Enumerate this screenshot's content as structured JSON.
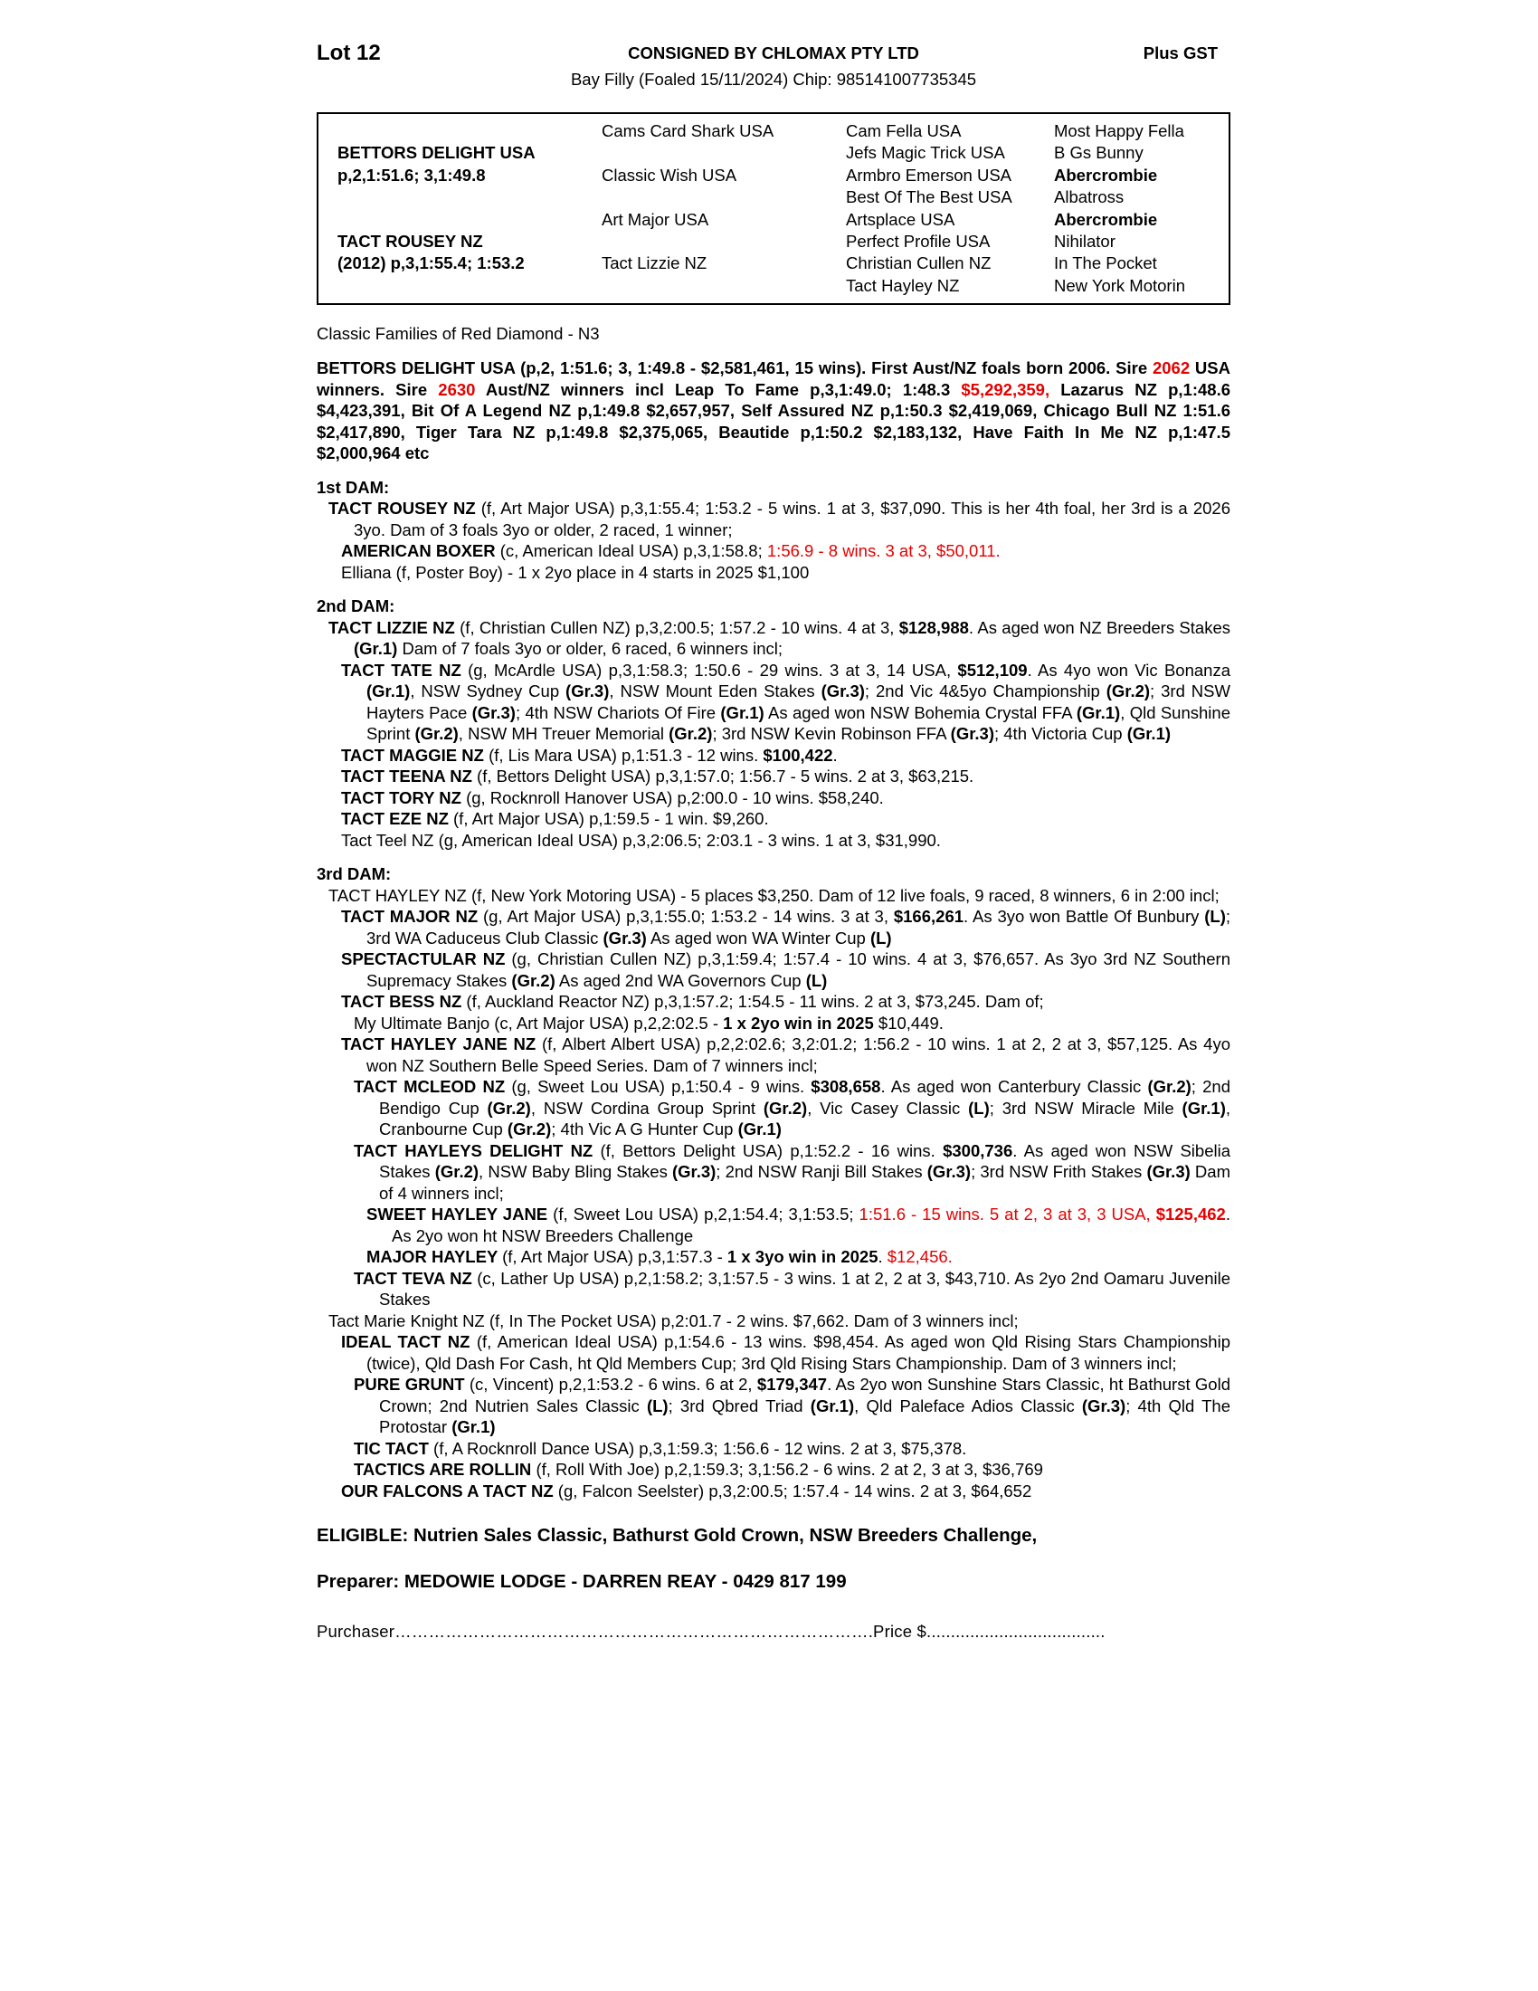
{
  "colors": {
    "red": "#e50000",
    "text": "#000000",
    "background": "#ffffff"
  },
  "header": {
    "lot": "Lot 12",
    "consigned": "CONSIGNED BY CHLOMAX PTY LTD",
    "plus_gst": "Plus GST",
    "subtitle": "Bay Filly (Foaled 15/11/2024) Chip: 985141007735345"
  },
  "pedigree": {
    "rows": [
      [
        null,
        {
          "t": "Cams Card Shark USA",
          "b": false
        },
        {
          "t": "Cam Fella USA",
          "b": false
        },
        {
          "t": "Most Happy Fella",
          "b": false
        }
      ],
      [
        {
          "t": "BETTORS DELIGHT USA",
          "b": true
        },
        null,
        {
          "t": "Jefs Magic Trick USA",
          "b": false
        },
        {
          "t": "B Gs Bunny",
          "b": false
        }
      ],
      [
        {
          "t": "p,2,1:51.6; 3,1:49.8",
          "b": true
        },
        {
          "t": "Classic Wish USA",
          "b": false
        },
        {
          "t": "Armbro Emerson USA",
          "b": false
        },
        {
          "t": "Abercrombie",
          "b": true
        }
      ],
      [
        null,
        null,
        {
          "t": "Best Of The Best USA",
          "b": false
        },
        {
          "t": "Albatross",
          "b": false
        }
      ],
      [
        null,
        {
          "t": "Art Major USA",
          "b": false
        },
        {
          "t": "Artsplace USA",
          "b": false
        },
        {
          "t": "Abercrombie",
          "b": true
        }
      ],
      [
        {
          "t": "TACT ROUSEY NZ",
          "b": true
        },
        null,
        {
          "t": "Perfect Profile USA",
          "b": false
        },
        {
          "t": "Nihilator",
          "b": false
        }
      ],
      [
        {
          "t": "(2012) p,3,1:55.4; 1:53.2",
          "b": true
        },
        {
          "t": "Tact Lizzie NZ",
          "b": false
        },
        {
          "t": "Christian Cullen NZ",
          "b": false
        },
        {
          "t": "In The Pocket",
          "b": false
        }
      ],
      [
        null,
        null,
        {
          "t": "Tact Hayley NZ",
          "b": false
        },
        {
          "t": "New York Motorin",
          "b": false
        }
      ]
    ]
  },
  "families_note": "Classic Families of Red Diamond - N3",
  "sire_paragraph": {
    "segments": [
      [
        "b",
        "BETTORS DELIGHT USA (p,2, 1:51.6; 3, 1:49.8 - $2,581,461, 15 wins). First Aust/NZ foals born 2006. Sire "
      ],
      [
        "rb",
        "2062"
      ],
      [
        "b",
        " USA winners. Sire "
      ],
      [
        "rb",
        "2630"
      ],
      [
        "b",
        " Aust/NZ winners incl Leap To Fame p,3,1:49.0; 1:48.3 "
      ],
      [
        "rb",
        "$5,292,359,"
      ],
      [
        "b",
        " Lazarus NZ p,1:48.6 $4,423,391, Bit Of A Legend NZ p,1:49.8 $2,657,957, Self Assured NZ p,1:50.3 $2,419,069, Chicago Bull NZ 1:51.6 $2,417,890,  Tiger Tara NZ p,1:49.8 $2,375,065, Beautide p,1:50.2 $2,183,132, Have Faith In Me NZ p,1:47.5 $2,000,964 etc"
      ]
    ]
  },
  "sections": [
    {
      "title": "1st DAM:",
      "entries": [
        {
          "indent": 0,
          "segments": [
            [
              "b",
              "TACT ROUSEY NZ "
            ],
            [
              "n",
              "(f, Art Major USA) p,3,1:55.4; 1:53.2 - 5 wins. 1 at 3, $37,090. This is her 4th foal, her 3rd is a 2026 3yo. Dam of 3 foals 3yo or older, 2 raced, 1 winner;"
            ]
          ]
        },
        {
          "indent": 1,
          "segments": [
            [
              "b",
              "AMERICAN BOXER "
            ],
            [
              "n",
              "(c, American Ideal USA) p,3,1:58.8; "
            ],
            [
              "r",
              "1:56.9 - 8 wins. 3 at 3, $50,011."
            ]
          ]
        },
        {
          "indent": 1,
          "segments": [
            [
              "n",
              "Elliana (f, Poster Boy) - 1 x 2yo place in 4 starts in 2025 $1,100"
            ]
          ]
        }
      ]
    },
    {
      "title": "2nd DAM:",
      "entries": [
        {
          "indent": 0,
          "segments": [
            [
              "b",
              "TACT LIZZIE NZ "
            ],
            [
              "n",
              "(f, Christian Cullen NZ) p,3,2:00.5; 1:57.2 - 10 wins. 4 at 3, "
            ],
            [
              "b",
              "$128,988"
            ],
            [
              "n",
              ". As aged won NZ Breeders Stakes "
            ],
            [
              "b",
              "(Gr.1)"
            ],
            [
              "n",
              " Dam of 7 foals 3yo or older, 6 raced, 6 winners incl;"
            ]
          ]
        },
        {
          "indent": 1,
          "segments": [
            [
              "b",
              "TACT TATE NZ "
            ],
            [
              "n",
              "(g, McArdle USA) p,3,1:58.3; 1:50.6 - 29 wins. 3 at 3, 14 USA, "
            ],
            [
              "b",
              "$512,109"
            ],
            [
              "n",
              ". As 4yo won Vic Bonanza "
            ],
            [
              "b",
              "(Gr.1)"
            ],
            [
              "n",
              ", NSW Sydney Cup "
            ],
            [
              "b",
              "(Gr.3)"
            ],
            [
              "n",
              ", NSW Mount Eden Stakes "
            ],
            [
              "b",
              "(Gr.3)"
            ],
            [
              "n",
              "; 2nd Vic 4&5yo Championship "
            ],
            [
              "b",
              "(Gr.2)"
            ],
            [
              "n",
              "; 3rd NSW Hayters Pace "
            ],
            [
              "b",
              "(Gr.3)"
            ],
            [
              "n",
              "; 4th NSW Chariots Of Fire "
            ],
            [
              "b",
              "(Gr.1)"
            ],
            [
              "n",
              " As aged won NSW Bohemia Crystal FFA "
            ],
            [
              "b",
              "(Gr.1)"
            ],
            [
              "n",
              ", Qld Sunshine Sprint "
            ],
            [
              "b",
              "(Gr.2)"
            ],
            [
              "n",
              ", NSW MH Treuer Memorial "
            ],
            [
              "b",
              "(Gr.2)"
            ],
            [
              "n",
              "; 3rd NSW Kevin Robinson FFA "
            ],
            [
              "b",
              "(Gr.3)"
            ],
            [
              "n",
              "; 4th Victoria Cup "
            ],
            [
              "b",
              "(Gr.1)"
            ]
          ]
        },
        {
          "indent": 1,
          "segments": [
            [
              "b",
              "TACT MAGGIE NZ "
            ],
            [
              "n",
              "(f, Lis Mara USA) p,1:51.3 - 12 wins. "
            ],
            [
              "b",
              "$100,422"
            ],
            [
              "n",
              "."
            ]
          ]
        },
        {
          "indent": 1,
          "segments": [
            [
              "b",
              "TACT TEENA NZ "
            ],
            [
              "n",
              "(f, Bettors Delight USA) p,3,1:57.0; 1:56.7 - 5 wins. 2 at 3, $63,215."
            ]
          ]
        },
        {
          "indent": 1,
          "segments": [
            [
              "b",
              "TACT TORY NZ "
            ],
            [
              "n",
              "(g, Rocknroll Hanover USA) p,2:00.0 - 10 wins. $58,240."
            ]
          ]
        },
        {
          "indent": 1,
          "segments": [
            [
              "b",
              "TACT EZE NZ "
            ],
            [
              "n",
              "(f, Art Major USA) p,1:59.5 - 1 win. $9,260."
            ]
          ]
        },
        {
          "indent": 1,
          "segments": [
            [
              "n",
              "Tact Teel NZ (g, American Ideal USA) p,3,2:06.5; 2:03.1 - 3 wins. 1 at 3, $31,990."
            ]
          ]
        }
      ]
    },
    {
      "title": "3rd DAM:",
      "entries": [
        {
          "indent": 0,
          "segments": [
            [
              "n",
              "TACT HAYLEY NZ (f, New York Motoring USA) - 5 places $3,250. Dam of 12 live foals, 9 raced, 8 winners, 6 in 2:00 incl;"
            ]
          ]
        },
        {
          "indent": 1,
          "segments": [
            [
              "b",
              "TACT MAJOR NZ "
            ],
            [
              "n",
              "(g, Art Major USA) p,3,1:55.0; 1:53.2 - 14 wins. 3 at 3, "
            ],
            [
              "b",
              "$166,261"
            ],
            [
              "n",
              ". As 3yo won Battle Of Bunbury "
            ],
            [
              "b",
              "(L)"
            ],
            [
              "n",
              "; 3rd WA Caduceus Club Classic "
            ],
            [
              "b",
              "(Gr.3)"
            ],
            [
              "n",
              " As aged won WA Winter Cup "
            ],
            [
              "b",
              "(L)"
            ]
          ]
        },
        {
          "indent": 1,
          "segments": [
            [
              "b",
              "SPECTACTULAR NZ "
            ],
            [
              "n",
              "(g, Christian Cullen NZ) p,3,1:59.4; 1:57.4 - 10 wins. 4 at 3, $76,657. As 3yo 3rd NZ Southern Supremacy Stakes "
            ],
            [
              "b",
              "(Gr.2)"
            ],
            [
              "n",
              " As aged 2nd WA Governors Cup "
            ],
            [
              "b",
              "(L)"
            ]
          ]
        },
        {
          "indent": 1,
          "segments": [
            [
              "b",
              "TACT BESS NZ "
            ],
            [
              "n",
              "(f, Auckland Reactor NZ) p,3,1:57.2; 1:54.5 - 11 wins. 2 at 3, $73,245. Dam of;"
            ]
          ]
        },
        {
          "indent": 2,
          "segments": [
            [
              "n",
              "My Ultimate Banjo (c, Art Major USA) p,2,2:02.5 - "
            ],
            [
              "b",
              "1 x 2yo win in 2025"
            ],
            [
              "n",
              " $10,449."
            ]
          ]
        },
        {
          "indent": 1,
          "segments": [
            [
              "b",
              "TACT HAYLEY JANE NZ "
            ],
            [
              "n",
              "(f, Albert Albert USA) p,2,2:02.6; 3,2:01.2; 1:56.2 - 10 wins. 1 at 2, 2 at 3, $57,125. As 4yo won NZ Southern Belle Speed Series. Dam of 7 winners incl;"
            ]
          ]
        },
        {
          "indent": 2,
          "segments": [
            [
              "b",
              "TACT MCLEOD NZ "
            ],
            [
              "n",
              "(g, Sweet Lou USA) p,1:50.4 - 9 wins. "
            ],
            [
              "b",
              "$308,658"
            ],
            [
              "n",
              ". As aged won Canterbury Classic "
            ],
            [
              "b",
              "(Gr.2)"
            ],
            [
              "n",
              "; 2nd Bendigo Cup "
            ],
            [
              "b",
              "(Gr.2)"
            ],
            [
              "n",
              ", NSW Cordina Group Sprint "
            ],
            [
              "b",
              "(Gr.2)"
            ],
            [
              "n",
              ", Vic Casey Classic "
            ],
            [
              "b",
              "(L)"
            ],
            [
              "n",
              "; 3rd NSW Miracle Mile "
            ],
            [
              "b",
              "(Gr.1)"
            ],
            [
              "n",
              ", Cranbourne Cup "
            ],
            [
              "b",
              "(Gr.2)"
            ],
            [
              "n",
              "; 4th Vic A G Hunter Cup "
            ],
            [
              "b",
              "(Gr.1)"
            ]
          ]
        },
        {
          "indent": 2,
          "segments": [
            [
              "b",
              "TACT HAYLEYS DELIGHT NZ "
            ],
            [
              "n",
              "(f, Bettors Delight USA) p,1:52.2 - 16 wins. "
            ],
            [
              "b",
              "$300,736"
            ],
            [
              "n",
              ". As aged won NSW Sibelia Stakes "
            ],
            [
              "b",
              "(Gr.2)"
            ],
            [
              "n",
              ", NSW Baby Bling Stakes "
            ],
            [
              "b",
              "(Gr.3)"
            ],
            [
              "n",
              "; 2nd NSW Ranji Bill Stakes "
            ],
            [
              "b",
              "(Gr.3)"
            ],
            [
              "n",
              "; 3rd NSW Frith Stakes "
            ],
            [
              "b",
              "(Gr.3)"
            ],
            [
              "n",
              " Dam of 4 winners incl;"
            ]
          ]
        },
        {
          "indent": 3,
          "segments": [
            [
              "b",
              "SWEET HAYLEY JANE "
            ],
            [
              "n",
              "(f, Sweet Lou USA) p,2,1:54.4; 3,1:53.5; "
            ],
            [
              "r",
              "1:51.6 - 15 wins. 5 at 2, 3 at 3, 3 USA, "
            ],
            [
              "rb",
              "$125,462"
            ],
            [
              "n",
              ". As 2yo won ht NSW Breeders Challenge"
            ]
          ]
        },
        {
          "indent": 3,
          "segments": [
            [
              "b",
              "MAJOR HAYLEY "
            ],
            [
              "n",
              "(f, Art Major USA) p,3,1:57.3 - "
            ],
            [
              "b",
              "1 x 3yo win in 2025"
            ],
            [
              "n",
              ". "
            ],
            [
              "r",
              "$12,456."
            ]
          ]
        },
        {
          "indent": 2,
          "segments": [
            [
              "b",
              "TACT TEVA NZ "
            ],
            [
              "n",
              "(c, Lather Up USA) p,2,1:58.2; 3,1:57.5 - 3 wins. 1 at 2, 2 at 3, $43,710. As 2yo 2nd Oamaru Juvenile Stakes"
            ]
          ]
        },
        {
          "indent": 0,
          "segments": [
            [
              "n",
              "Tact Marie Knight NZ (f, In The Pocket USA) p,2:01.7 - 2 wins. $7,662. Dam of 3 winners incl;"
            ]
          ]
        },
        {
          "indent": 1,
          "segments": [
            [
              "b",
              "IDEAL TACT NZ "
            ],
            [
              "n",
              "(f, American Ideal USA) p,1:54.6 - 13 wins. $98,454. As aged won Qld Rising Stars Championship (twice), Qld Dash For Cash, ht Qld Members Cup; 3rd Qld Rising Stars Championship. Dam of 3 winners incl;"
            ]
          ]
        },
        {
          "indent": 2,
          "segments": [
            [
              "b",
              "PURE GRUNT "
            ],
            [
              "n",
              "(c, Vincent) p,2,1:53.2 - 6 wins. 6 at 2, "
            ],
            [
              "b",
              "$179,347"
            ],
            [
              "n",
              ". As 2yo won Sunshine Stars Classic, ht Bathurst Gold Crown; 2nd Nutrien Sales Classic "
            ],
            [
              "b",
              "(L)"
            ],
            [
              "n",
              "; 3rd Qbred Triad "
            ],
            [
              "b",
              "(Gr.1)"
            ],
            [
              "n",
              ", Qld Paleface Adios Classic "
            ],
            [
              "b",
              "(Gr.3)"
            ],
            [
              "n",
              "; 4th Qld The Protostar "
            ],
            [
              "b",
              "(Gr.1)"
            ]
          ]
        },
        {
          "indent": 2,
          "segments": [
            [
              "b",
              "TIC TACT "
            ],
            [
              "n",
              "(f, A Rocknroll Dance USA) p,3,1:59.3; 1:56.6 - 12 wins. 2 at 3, $75,378."
            ]
          ]
        },
        {
          "indent": 2,
          "segments": [
            [
              "b",
              "TACTICS ARE ROLLIN "
            ],
            [
              "n",
              "(f, Roll With Joe) p,2,1:59.3; 3,1:56.2 - 6 wins. 2 at 2, 3 at 3, $36,769"
            ]
          ]
        },
        {
          "indent": 1,
          "segments": [
            [
              "b",
              "OUR FALCONS A TACT NZ "
            ],
            [
              "n",
              "(g, Falcon Seelster) p,3,2:00.5; 1:57.4 - 14 wins. 2 at 3, $64,652"
            ]
          ]
        }
      ]
    }
  ],
  "eligible": "ELIGIBLE: Nutrien Sales Classic, Bathurst Gold Crown, NSW Breeders Challenge,",
  "preparer": "Preparer: MEDOWIE LODGE - DARREN REAY - 0429 817 199",
  "purchaser_line": "Purchaser………………………………………………………………………….Price $....................................."
}
